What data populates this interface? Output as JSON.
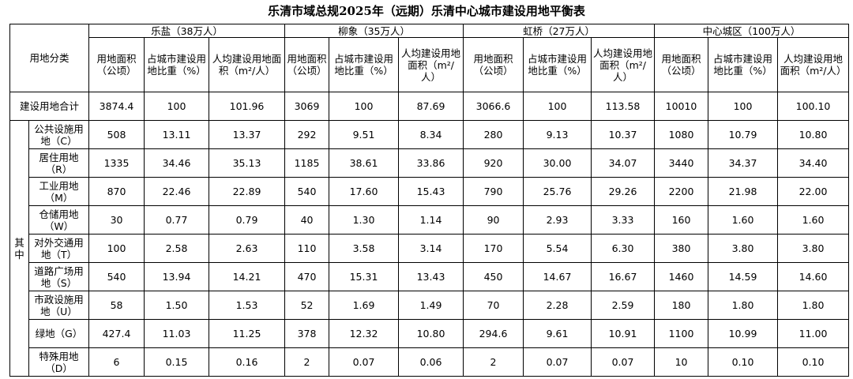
{
  "title": "乐清市域总规2025年（远期）乐清中心城市建设用地平衡表",
  "header": {
    "category": "用地分类",
    "groups": [
      {
        "name": "乐盐（38万人）",
        "columns": [
          "用地面积（公顷）",
          "占城市建设用地比重（%）",
          "人均建设用地面积（m²/人）"
        ]
      },
      {
        "name": "柳象（35万人）",
        "columns": [
          "用地面积（公顷）",
          "占城市建设用地比重（%）",
          "人均建设用地面积（m²/人）"
        ]
      },
      {
        "name": "虹桥（27万人）",
        "columns": [
          "用地面积（公顷）",
          "占城市建设用地比重（%）",
          "人均建设用地面积（m²/人）"
        ]
      },
      {
        "name": "中心城区（100万人）",
        "columns": [
          "用地面积（公顷）",
          "占城市建设用地比重（%）",
          "人均建设用地面积（m²/人）"
        ]
      }
    ]
  },
  "total": {
    "label": "建设用地合计",
    "values": [
      "3874.4",
      "100",
      "101.96",
      "3069",
      "100",
      "87.69",
      "3066.6",
      "100",
      "113.58",
      "10010",
      "100",
      "100.10"
    ]
  },
  "sub_label": "其中",
  "rows": [
    {
      "label": "公共设施用地（C）",
      "values": [
        "508",
        "13.11",
        "13.37",
        "292",
        "9.51",
        "8.34",
        "280",
        "9.13",
        "10.37",
        "1080",
        "10.79",
        "10.80"
      ]
    },
    {
      "label": "居住用地（R）",
      "values": [
        "1335",
        "34.46",
        "35.13",
        "1185",
        "38.61",
        "33.86",
        "920",
        "30.00",
        "34.07",
        "3440",
        "34.37",
        "34.40"
      ]
    },
    {
      "label": "工业用地（M）",
      "values": [
        "870",
        "22.46",
        "22.89",
        "540",
        "17.60",
        "15.43",
        "790",
        "25.76",
        "29.26",
        "2200",
        "21.98",
        "22.00"
      ]
    },
    {
      "label": "仓储用地（W）",
      "values": [
        "30",
        "0.77",
        "0.79",
        "40",
        "1.30",
        "1.14",
        "90",
        "2.93",
        "3.33",
        "160",
        "1.60",
        "1.60"
      ]
    },
    {
      "label": "对外交通用地（T）",
      "values": [
        "100",
        "2.58",
        "2.63",
        "110",
        "3.58",
        "3.14",
        "170",
        "5.54",
        "6.30",
        "380",
        "3.80",
        "3.80"
      ]
    },
    {
      "label": "道路广场用地（S）",
      "values": [
        "540",
        "13.94",
        "14.21",
        "470",
        "15.31",
        "13.43",
        "450",
        "14.67",
        "16.67",
        "1460",
        "14.59",
        "14.60"
      ]
    },
    {
      "label": "市政设施用地（U）",
      "values": [
        "58",
        "1.50",
        "1.53",
        "52",
        "1.69",
        "1.49",
        "70",
        "2.28",
        "2.59",
        "180",
        "1.80",
        "1.80"
      ]
    },
    {
      "label": "绿地（G）",
      "values": [
        "427.4",
        "11.03",
        "11.25",
        "378",
        "12.32",
        "10.80",
        "294.6",
        "9.61",
        "10.91",
        "1100",
        "10.99",
        "11.00"
      ]
    },
    {
      "label": "特殊用地（D）",
      "values": [
        "6",
        "0.15",
        "0.16",
        "2",
        "0.07",
        "0.06",
        "2",
        "0.07",
        "0.07",
        "10",
        "0.10",
        "0.10"
      ]
    }
  ]
}
